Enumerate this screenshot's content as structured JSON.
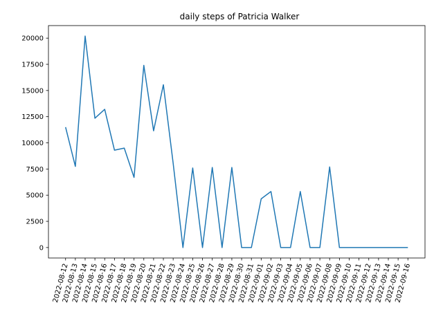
{
  "chart_data": {
    "type": "line",
    "title": "daily steps of Patricia Walker",
    "xlabel": "",
    "ylabel": "",
    "x": [
      "2022-08-12",
      "2022-08-13",
      "2022-08-14",
      "2022-08-15",
      "2022-08-16",
      "2022-08-17",
      "2022-08-18",
      "2022-08-19",
      "2022-08-20",
      "2022-08-21",
      "2022-08-22",
      "2022-08-23",
      "2022-08-24",
      "2022-08-25",
      "2022-08-26",
      "2022-08-27",
      "2022-08-28",
      "2022-08-29",
      "2022-08-30",
      "2022-08-31",
      "2022-09-01",
      "2022-09-02",
      "2022-09-03",
      "2022-09-04",
      "2022-09-05",
      "2022-09-06",
      "2022-09-07",
      "2022-09-08",
      "2022-09-09",
      "2022-09-10",
      "2022-09-11",
      "2022-09-12",
      "2022-09-13",
      "2022-09-14",
      "2022-09-15",
      "2022-09-16"
    ],
    "series": [
      {
        "values": [
          11500,
          7750,
          20200,
          12350,
          13200,
          9300,
          9500,
          6700,
          17400,
          11150,
          15550,
          8050,
          0,
          7600,
          0,
          7650,
          0,
          7650,
          0,
          0,
          4650,
          5350,
          0,
          0,
          5350,
          0,
          0,
          7700,
          0,
          0,
          0,
          0,
          0,
          0,
          0,
          0
        ]
      }
    ],
    "ylim": [
      -1000,
      21200
    ],
    "yticks": [
      0,
      2500,
      5000,
      7500,
      10000,
      12500,
      15000,
      17500,
      20000
    ],
    "grid": false,
    "line_color": "#1f77b4"
  }
}
